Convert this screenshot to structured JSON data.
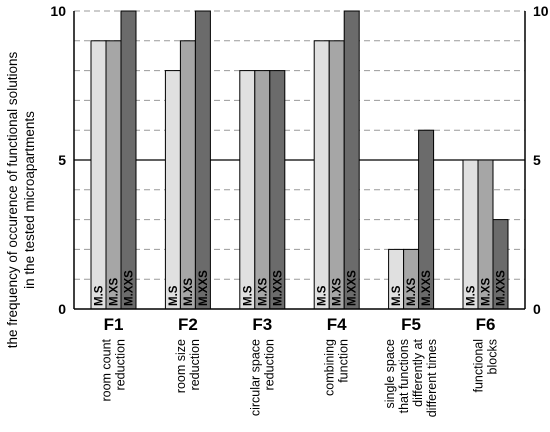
{
  "chart_data": {
    "type": "bar",
    "ylabel": "the frequency of occurence of functional solutions in the tested microapartments",
    "ylabel_lines": [
      "the frequency of occurence of functional solutions",
      "in the tested microapartments"
    ],
    "ylim": [
      0,
      10
    ],
    "y_ticks_labeled": [
      0,
      5,
      10
    ],
    "grid": "dashed horizontal lines at every integer",
    "categories": [
      {
        "code": "F1",
        "desc_lines": [
          "room count",
          "reduction"
        ]
      },
      {
        "code": "F2",
        "desc_lines": [
          "room size",
          "reduction"
        ]
      },
      {
        "code": "F3",
        "desc_lines": [
          "circular space",
          "reduction"
        ]
      },
      {
        "code": "F4",
        "desc_lines": [
          "combining",
          "function"
        ]
      },
      {
        "code": "F5",
        "desc_lines": [
          "single space",
          "that functions",
          "differently at",
          "different times"
        ]
      },
      {
        "code": "F6",
        "desc_lines": [
          "functional",
          "blocks"
        ]
      }
    ],
    "series": [
      {
        "name": "M.S",
        "color": "#e0e0e0",
        "values": [
          9,
          8,
          8,
          9,
          2,
          5
        ]
      },
      {
        "name": "M.XS",
        "color": "#a6a6a6",
        "values": [
          9,
          9,
          8,
          9,
          2,
          5
        ]
      },
      {
        "name": "M.XXS",
        "color": "#6b6b6b",
        "values": [
          10,
          10,
          8,
          10,
          6,
          3
        ]
      }
    ]
  }
}
